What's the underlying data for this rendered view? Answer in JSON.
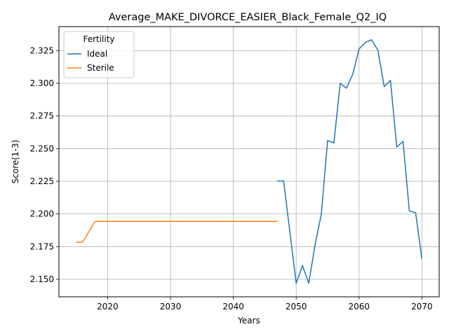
{
  "chart_data": {
    "type": "line",
    "title": "Average_MAKE_DIVORCE_EASIER_Black_Female_Q2_IQ",
    "xlabel": "Years",
    "ylabel": "Score(1-3)",
    "xlim": [
      2012.25,
      2072.75
    ],
    "ylim": [
      2.1366,
      2.3434
    ],
    "xticks": [
      2020,
      2030,
      2040,
      2050,
      2060,
      2070
    ],
    "yticks": [
      2.15,
      2.175,
      2.2,
      2.225,
      2.25,
      2.275,
      2.3,
      2.325
    ],
    "grid": true,
    "legend": {
      "title": "Fertility",
      "placement": "upper-left"
    },
    "series": [
      {
        "name": "Ideal",
        "color": "#1f77b4",
        "x": [
          2047,
          2048,
          2049,
          2050,
          2051,
          2052,
          2053,
          2054,
          2055,
          2056,
          2057,
          2058,
          2059,
          2060,
          2061,
          2062,
          2063,
          2064,
          2065,
          2066,
          2067,
          2068,
          2069,
          2070
        ],
        "y": [
          2.2253,
          2.2253,
          2.186,
          2.147,
          2.1605,
          2.147,
          2.1763,
          2.2,
          2.2563,
          2.2543,
          2.3,
          2.2963,
          2.307,
          2.3263,
          2.3313,
          2.3333,
          2.3253,
          2.2975,
          2.3023,
          2.2513,
          2.2555,
          2.2023,
          2.201,
          2.1658
        ]
      },
      {
        "name": "Sterile",
        "color": "#ff7f0e",
        "x": [
          2015,
          2016,
          2017,
          2018,
          2019,
          2020,
          2021,
          2022,
          2023,
          2024,
          2025,
          2026,
          2027,
          2028,
          2029,
          2030,
          2031,
          2032,
          2033,
          2034,
          2035,
          2036,
          2037,
          2038,
          2039,
          2040,
          2041,
          2042,
          2043,
          2044,
          2045,
          2046,
          2047
        ],
        "y": [
          2.1783,
          2.1783,
          2.1863,
          2.1943,
          2.1943,
          2.1943,
          2.1943,
          2.1943,
          2.1943,
          2.1943,
          2.1943,
          2.1943,
          2.1943,
          2.1943,
          2.1943,
          2.1943,
          2.1943,
          2.1943,
          2.1943,
          2.1943,
          2.1943,
          2.1943,
          2.1943,
          2.1943,
          2.1943,
          2.1943,
          2.1943,
          2.1943,
          2.1943,
          2.1943,
          2.1943,
          2.1943,
          2.1943
        ]
      }
    ]
  }
}
